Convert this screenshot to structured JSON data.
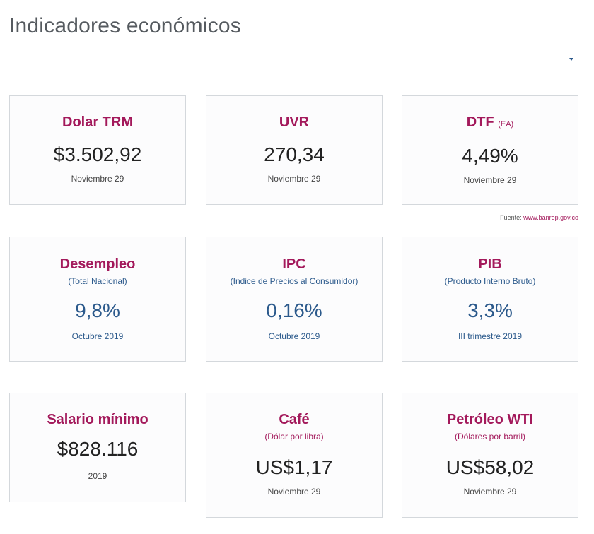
{
  "header": {
    "title": "Indicadores económicos"
  },
  "source": {
    "label": "Fuente:",
    "link": "www.banrep.gov.co"
  },
  "cards": [
    {
      "title": "Dolar TRM",
      "suffix": "",
      "subtitle": "",
      "value": "$3.502,92",
      "date": "Noviembre 29"
    },
    {
      "title": "UVR",
      "suffix": "",
      "subtitle": "",
      "value": "270,34",
      "date": "Noviembre 29"
    },
    {
      "title": "DTF",
      "suffix": "(EA)",
      "subtitle": "",
      "value": "4,49%",
      "date": "Noviembre 29"
    },
    {
      "title": "Desempleo",
      "suffix": "",
      "subtitle": "(Total Nacional)",
      "value": "9,8%",
      "date": "Octubre 2019"
    },
    {
      "title": "IPC",
      "suffix": "",
      "subtitle": "(Indice de Precios al Consumidor)",
      "value": "0,16%",
      "date": "Octubre 2019"
    },
    {
      "title": "PIB",
      "suffix": "",
      "subtitle": "(Producto Interno Bruto)",
      "value": "3,3%",
      "date": "III trimestre 2019"
    },
    {
      "title": "Salario mínimo",
      "suffix": "",
      "subtitle": "",
      "value": "$828.116",
      "date": "2019"
    },
    {
      "title": "Café",
      "suffix": "",
      "subtitle": "(Dólar por libra)",
      "value": "US$1,17",
      "date": "Noviembre 29"
    },
    {
      "title": "Petróleo WTI",
      "suffix": "",
      "subtitle": "(Dólares por barril)",
      "value": "US$58,02",
      "date": "Noviembre 29"
    }
  ],
  "colors": {
    "accent": "#a3195b",
    "blue": "#2c5a8c",
    "value": "#222222",
    "border": "#d4d8dc"
  }
}
